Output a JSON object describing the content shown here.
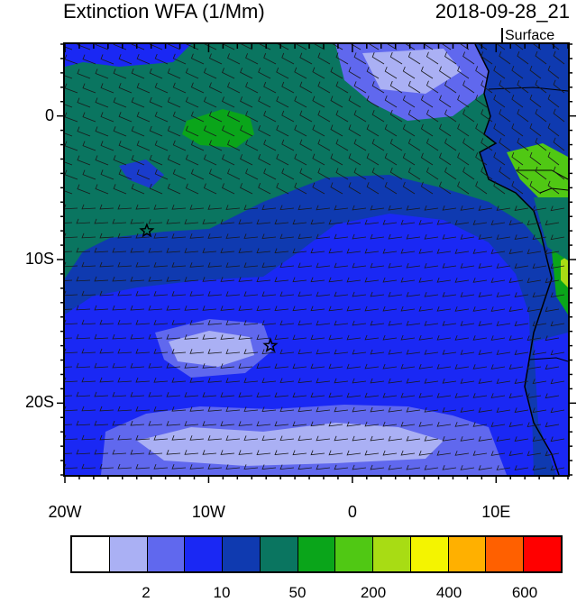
{
  "header": {
    "title": "Extinction WFA (1/Mm)",
    "datetime": "2018-09-28_21",
    "level": "Surface"
  },
  "map": {
    "lon_range": [
      -20,
      15
    ],
    "lat_range": [
      -25,
      5
    ],
    "lat_ticks": [
      {
        "value": 0,
        "label": "0"
      },
      {
        "value": -10,
        "label": "10S"
      },
      {
        "value": -20,
        "label": "20S"
      }
    ],
    "lon_ticks": [
      {
        "value": -20,
        "label": "20W"
      },
      {
        "value": -10,
        "label": "10W"
      },
      {
        "value": 0,
        "label": "0"
      },
      {
        "value": 10,
        "label": "10E"
      }
    ],
    "markers": [
      {
        "type": "star",
        "lon": -14.3,
        "lat": -8.0
      },
      {
        "type": "star",
        "lon": -5.7,
        "lat": -16.0
      }
    ]
  },
  "colorbar": {
    "colors": [
      "#ffffff",
      "#aab0f4",
      "#6068ee",
      "#1a28f4",
      "#0f3ab0",
      "#0a7560",
      "#0aa51a",
      "#50c814",
      "#a8dc14",
      "#f4f400",
      "#ffb000",
      "#ff6000",
      "#ff0000"
    ],
    "labels": [
      {
        "text": "2",
        "after_index": 1
      },
      {
        "text": "10",
        "after_index": 3
      },
      {
        "text": "50",
        "after_index": 5
      },
      {
        "text": "200",
        "after_index": 7
      },
      {
        "text": "400",
        "after_index": 9
      },
      {
        "text": "600",
        "after_index": 11
      }
    ]
  }
}
